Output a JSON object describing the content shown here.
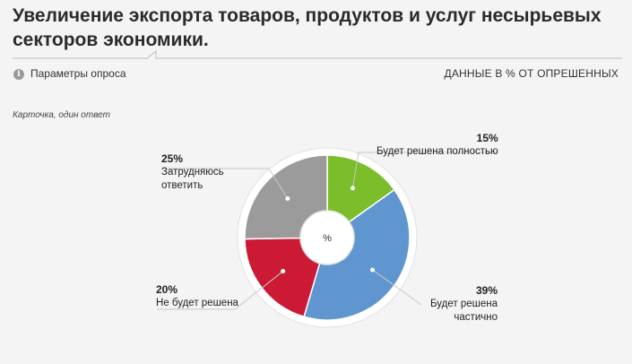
{
  "header": {
    "title": "Увеличение экспорта товаров, продуктов и услуг несырьевых секторов экономики.",
    "params_label": "Параметры опроса",
    "units_label": "ДАННЫЕ В % ОТ ОПРЕШЕННЫХ",
    "info_icon": "info-icon"
  },
  "note": "Карточка, один ответ",
  "center_label": "%",
  "chart_data": {
    "type": "pie",
    "donut": true,
    "categories": [
      "Будет решена полностью",
      "Будет решена частично",
      "Не будет решена",
      "Затрудняюсь ответить"
    ],
    "values": [
      15,
      39,
      20,
      25
    ],
    "value_labels": [
      "15%",
      "39%",
      "20%",
      "25%"
    ],
    "label_texts": [
      "Будет решена полностью",
      "Будет решена\nчастично",
      "Не будет решена",
      "Затрудняюсь\nответить"
    ],
    "colors": [
      "#7bbd2a",
      "#6096d0",
      "#cc1a35",
      "#9b9b9b"
    ],
    "title": "",
    "legend": "none"
  }
}
